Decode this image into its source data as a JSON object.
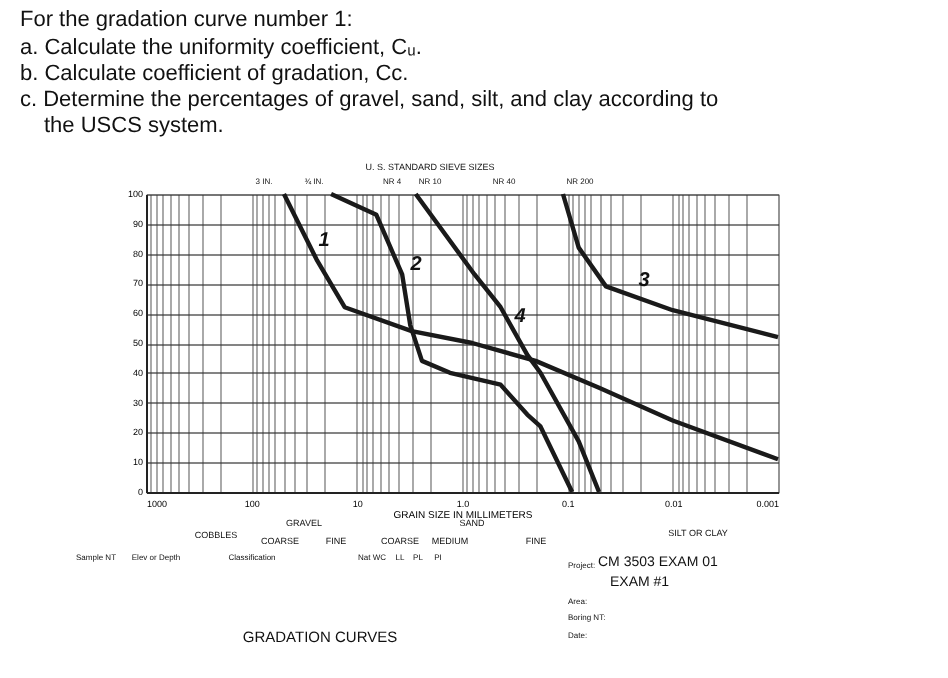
{
  "chart_data": {
    "type": "line",
    "xlabel": "GRAIN SIZE IN MILLIMETERS",
    "log": "x",
    "xlim": [
      1000,
      0.001
    ],
    "xticks": [
      1000,
      {
        "value": 900,
        "label": null
      },
      {
        "value": 800,
        "label": null
      },
      {
        "value": 700,
        "label": null
      },
      {
        "value": 600,
        "label": null
      },
      {
        "value": 500,
        "label": null
      },
      {
        "value": 400,
        "label": null
      },
      {
        "value": 300,
        "label": null
      },
      {
        "value": 200,
        "label": null
      },
      100,
      {
        "value": 90,
        "label": null
      },
      {
        "value": 80,
        "label": null
      },
      {
        "value": 70,
        "label": null
      },
      {
        "value": 60,
        "label": null
      },
      {
        "value": 50,
        "label": null
      },
      {
        "value": 40,
        "label": null
      },
      {
        "value": 30,
        "label": null
      },
      {
        "value": 20,
        "label": null
      },
      10,
      {
        "value": 9,
        "label": null
      },
      {
        "value": 8,
        "label": null
      },
      {
        "value": 7,
        "label": null
      },
      {
        "value": 6,
        "label": null
      },
      {
        "value": 5,
        "label": null
      },
      {
        "value": 4,
        "label": null
      },
      {
        "value": 3,
        "label": null
      },
      {
        "value": 2,
        "label": null
      },
      {
        "value": 1,
        "label": "1.0"
      },
      {
        "value": 0.9,
        "label": null
      },
      {
        "value": 0.8,
        "label": null
      },
      {
        "value": 0.7,
        "label": null
      },
      {
        "value": 0.6,
        "label": null
      },
      {
        "value": 0.5,
        "label": null
      },
      {
        "value": 0.4,
        "label": null
      },
      {
        "value": 0.3,
        "label": null
      },
      {
        "value": 0.2,
        "label": null
      },
      0.1,
      {
        "value": 0.09,
        "label": null
      },
      {
        "value": 0.08,
        "label": null
      },
      {
        "value": 0.07,
        "label": null
      },
      {
        "value": 0.06,
        "label": null
      },
      {
        "value": 0.05,
        "label": null
      },
      {
        "value": 0.04,
        "label": null
      },
      {
        "value": 0.03,
        "label": null
      },
      {
        "value": 0.02,
        "label": null
      },
      0.01,
      {
        "value": 0.009,
        "label": null
      },
      {
        "value": 0.008,
        "label": null
      },
      {
        "value": 0.007,
        "label": null
      },
      {
        "value": 0.006,
        "label": null
      },
      {
        "value": 0.005,
        "label": null
      },
      {
        "value": 0.004,
        "label": null
      },
      {
        "value": 0.003,
        "label": null
      },
      {
        "value": 0.002,
        "label": null
      },
      0.001
    ],
    "ylim": [
      0,
      100
    ],
    "yticks": [
      0,
      10,
      20,
      30,
      40,
      50,
      60,
      70,
      80,
      90,
      100
    ],
    "grid": true,
    "marker": "none",
    "line_style": "solid",
    "series": [
      {
        "color": "#1a1a1a",
        "x": [
          49,
          24,
          13,
          3,
          0.8,
          0.2,
          0.05,
          0.01,
          0.001
        ],
        "values": [
          100,
          78,
          62,
          54,
          50,
          44,
          35,
          24,
          11
        ]
      },
      {
        "color": "#1a1a1a",
        "x": [
          17.5,
          6.5,
          3.7,
          3.1,
          2.4,
          1.3,
          0.43,
          0.24,
          0.18,
          0.09
        ],
        "values": [
          100,
          93,
          73,
          56,
          44,
          40,
          36,
          26,
          22,
          0
        ]
      },
      {
        "color": "#1a1a1a",
        "x": [
          0.11,
          0.078,
          0.043,
          0.01,
          0.001
        ],
        "values": [
          100,
          82,
          69,
          61,
          52
        ]
      },
      {
        "color": "#1a1a1a",
        "x": [
          2.75,
          0.76,
          0.43,
          0.24,
          0.18,
          0.078,
          0.05
        ],
        "values": [
          100,
          73,
          62,
          46,
          40,
          17,
          0
        ]
      }
    ],
    "annotations": [
      "For the gradation curve number 1:",
      "a. Calculate the uniformity coefficient, Cᵤ.",
      "b. Calculate coefficient of gradation, Cc.",
      "c. Determine the percentages of gravel, sand, silt, and clay according to the USCS system.",
      "COBBLES",
      "GRAVEL",
      "COARSE",
      "FINE",
      "SAND",
      "COARSE",
      "MEDIUM",
      "FINE",
      "SILT OR CLAY",
      "Sample NT",
      "Elev or Depth",
      "Classification",
      "Nat WC",
      "LL",
      "PL",
      "PI",
      "Project:",
      "CM 3503 EXAM 01",
      "EXAM #1",
      "Area:",
      "Boring NT:",
      "Date:",
      "GRADATION CURVES",
      "U. S. STANDARD SIEVE SIZES",
      "3 IN.",
      "¾ IN.",
      "NR 4",
      "NR 10",
      "NR 40",
      "NR 200",
      "1",
      "2",
      "3",
      "4"
    ]
  }
}
